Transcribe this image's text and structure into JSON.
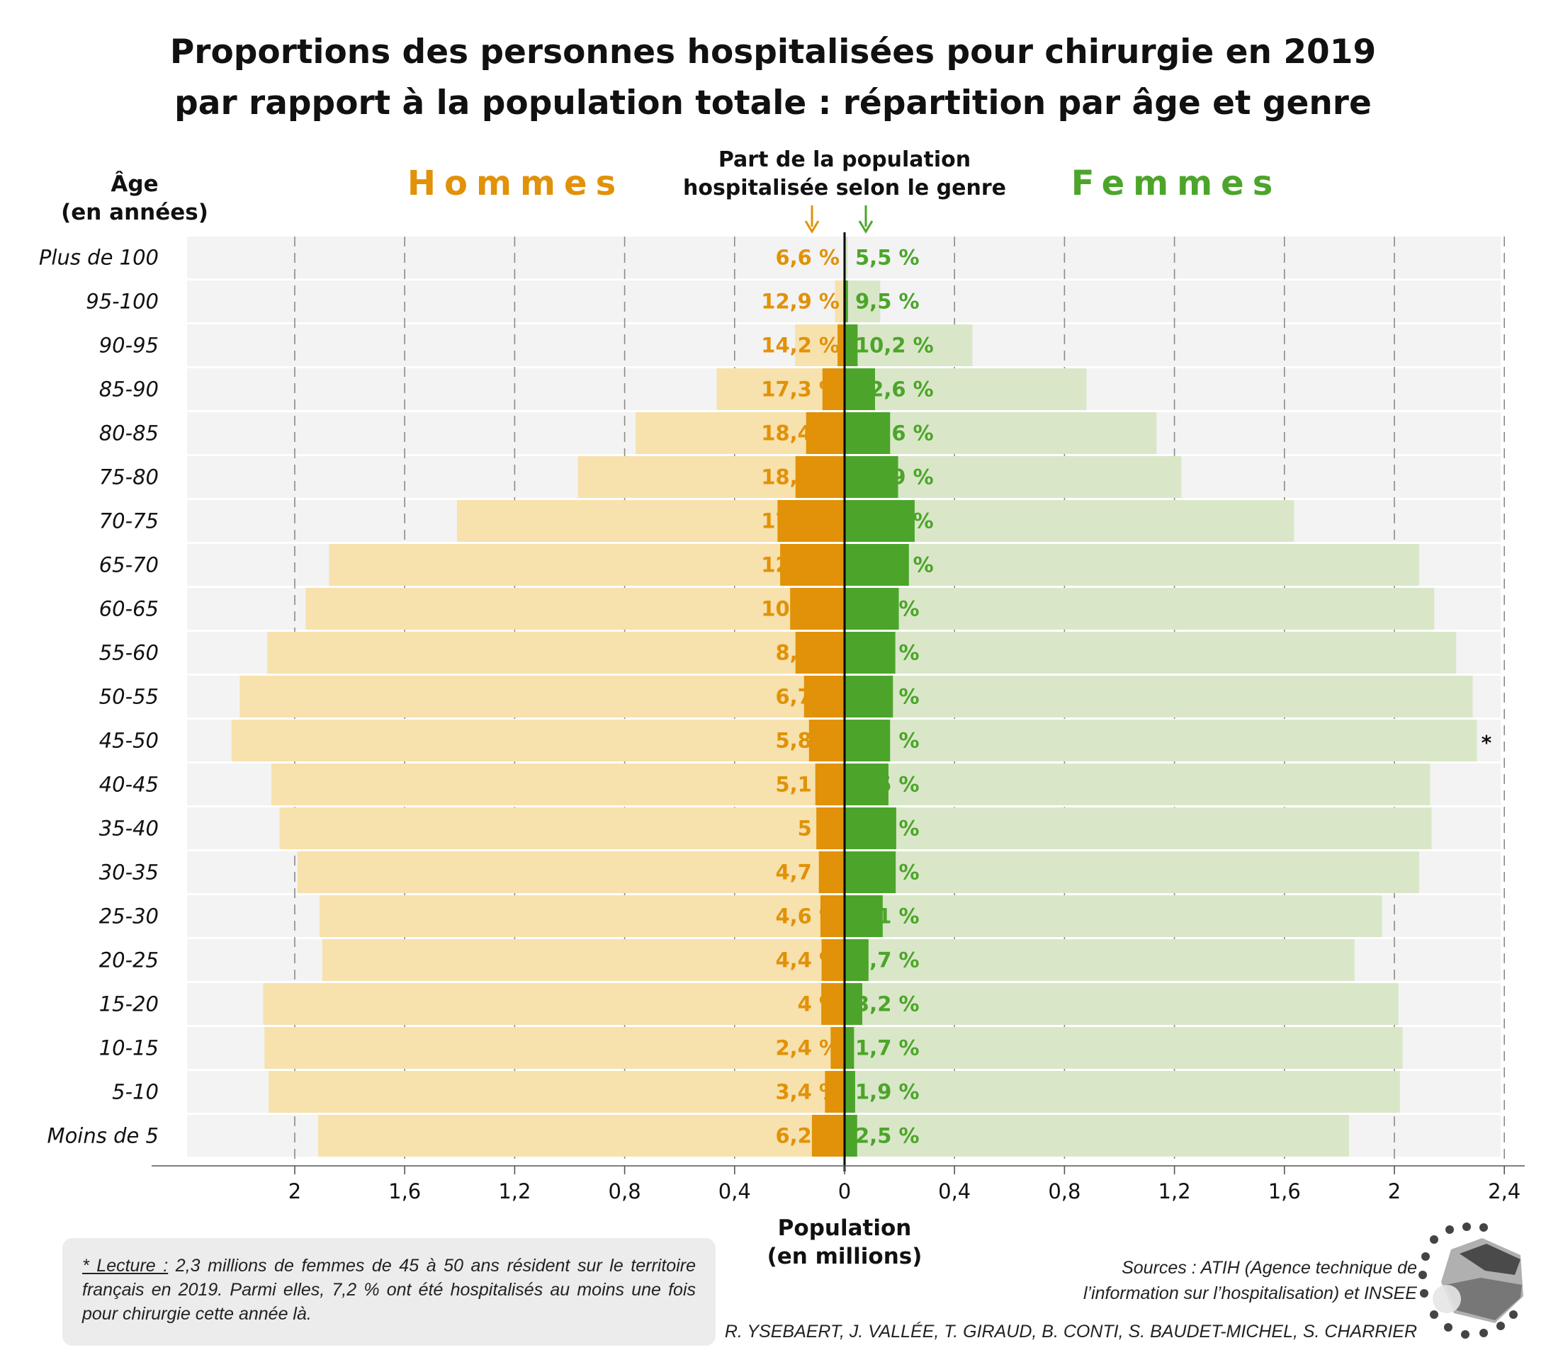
{
  "title_lines": [
    "Proportions des personnes hospitalisées pour chirurgie en 2019",
    "par rapport à la population totale : répartition par âge et genre"
  ],
  "labels": {
    "age_axis_line1": "Âge",
    "age_axis_line2": "(en années)",
    "hommes": "Hommes",
    "femmes": "Femmes",
    "part_line1": "Part de la population",
    "part_line2": "hospitalisée selon le genre",
    "xlabel_line1": "Population",
    "xlabel_line2": "(en millions)",
    "asterisk": "*"
  },
  "colors": {
    "men_light": "#f7e1ad",
    "men_dark": "#e19208",
    "women_light": "#d9e7c8",
    "women_dark": "#4ca52a",
    "men_text": "#e19208",
    "women_text": "#4ca52a",
    "row_band": "#f3f3f3",
    "grid": "#8a8a8a"
  },
  "chart_data": {
    "type": "bar",
    "orientation": "horizontal",
    "categories": [
      "Plus de 100",
      "95-100",
      "90-95",
      "85-90",
      "80-85",
      "75-80",
      "70-75",
      "65-70",
      "60-65",
      "55-60",
      "50-55",
      "45-50",
      "40-45",
      "35-40",
      "30-35",
      "25-30",
      "20-25",
      "15-20",
      "10-15",
      "5-10",
      "Moins de 5"
    ],
    "xlim": [
      -2.4,
      2.4
    ],
    "xticks": [
      -2,
      -1.6,
      -1.2,
      -0.8,
      -0.4,
      0,
      0.4,
      0.8,
      1.2,
      1.6,
      2,
      2.4
    ],
    "xtick_labels": [
      "2",
      "1,6",
      "1,2",
      "0,8",
      "0,4",
      "0",
      "0,4",
      "0,8",
      "1,2",
      "1,6",
      "2",
      "2,4"
    ],
    "series": [
      {
        "name": "Hommes",
        "population_millions": [
          0.003,
          0.035,
          0.18,
          0.465,
          0.76,
          0.97,
          1.41,
          1.875,
          1.96,
          2.1,
          2.2,
          2.23,
          2.085,
          2.055,
          1.99,
          1.91,
          1.9,
          2.115,
          2.11,
          2.095,
          1.915
        ],
        "hospitalized_share_pct": [
          6.6,
          12.9,
          14.2,
          17.3,
          18.4,
          18.4,
          17.3,
          12.5,
          10.1,
          8.5,
          6.7,
          5.8,
          5.1,
          5,
          4.7,
          4.6,
          4.4,
          4,
          2.4,
          3.4,
          6.2
        ],
        "share_labels": [
          "6,6 %",
          "12,9 %",
          "14,2 %",
          "17,3 %",
          "18,4 %",
          "18,4 %",
          "17,3 %",
          "12,5 %",
          "10,1 %",
          "8,5 %",
          "6,7 %",
          "5,8 %",
          "5,1 %",
          "5 %",
          "4,7 %",
          "4,6 %",
          "4,4 %",
          "4 %",
          "2,4 %",
          "3,4 %",
          "6,2 %"
        ]
      },
      {
        "name": "Femmes",
        "population_millions": [
          0.012,
          0.13,
          0.465,
          0.88,
          1.135,
          1.225,
          1.635,
          2.09,
          2.145,
          2.225,
          2.285,
          2.3,
          2.13,
          2.135,
          2.09,
          1.955,
          1.855,
          2.015,
          2.03,
          2.02,
          1.835
        ],
        "hospitalized_share_pct": [
          5.5,
          9.5,
          10.2,
          12.6,
          14.6,
          15.9,
          15.6,
          11.2,
          9.2,
          8.3,
          7.7,
          7.2,
          7.5,
          8.8,
          8.9,
          7.1,
          4.7,
          3.2,
          1.7,
          1.9,
          2.5
        ],
        "share_labels": [
          "5,5 %",
          "9,5 %",
          "10,2 %",
          "12,6 %",
          "14,6 %",
          "15,9 %",
          "15,6 %",
          "11,2 %",
          "9,2 %",
          "8,3 %",
          "7,7 %",
          "7,2 %",
          "7,5 %",
          "8,8 %",
          "8,9 %",
          "7,1 %",
          "4,7 %",
          "3,2 %",
          "1,7 %",
          "1,9 %",
          "2,5 %"
        ]
      }
    ]
  },
  "footnote": {
    "lecture": "* Lecture :",
    "text": "2,3 millions de femmes de 45 à 50 ans résident sur le territoire français en 2019. Parmi elles, 7,2 % ont été hospitalisés au moins une fois pour chirurgie cette année là."
  },
  "sources_lines": [
    "Sources : ATIH (Agence technique de",
    "l’information sur l’hospitalisation) et INSEE"
  ],
  "authors": "R. YSEBAERT, J. VALLÉE, T. GIRAUD, B. CONTI, S. BAUDET-MICHEL, S. CHARRIER"
}
